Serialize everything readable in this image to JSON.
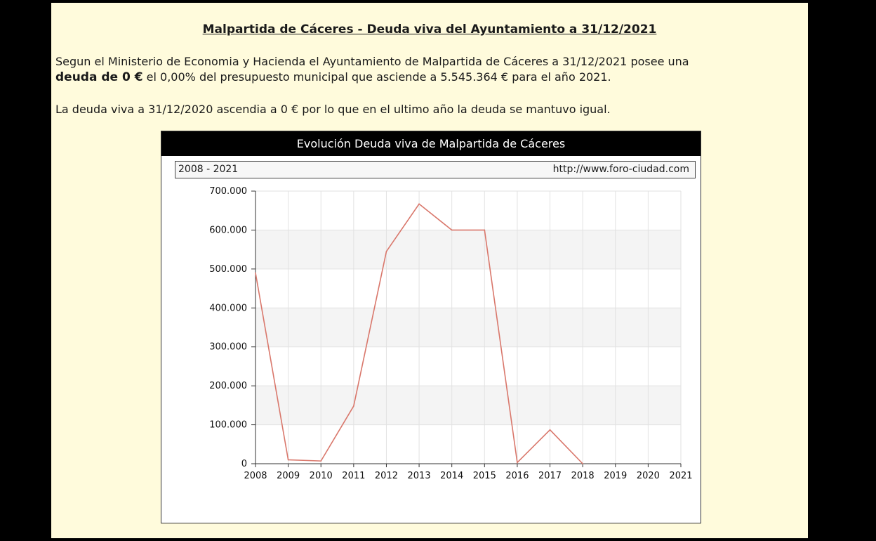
{
  "page": {
    "title": "Malpartida de Cáceres - Deuda viva del Ayuntamiento a 31/12/2021",
    "paragraph1_part1": "Segun el Ministerio de Economia y Hacienda el Ayuntamiento de Malpartida de Cáceres a 31/12/2021 posee una",
    "paragraph1_bold": "deuda de 0 €",
    "paragraph1_part2": " el 0,00% del presupuesto municipal que asciende a 5.545.364 € para el año 2021.",
    "paragraph2": "La deuda viva a 31/12/2020 ascendia a 0 € por lo que en el ultimo año la deuda se mantuvo igual."
  },
  "chart": {
    "header": "Evolución Deuda viva de Malpartida de Cáceres",
    "range_label": "2008 - 2021",
    "source_label": "http://www.foro-ciudad.com",
    "line_color": "#d9776b"
  },
  "chart_data": {
    "type": "line",
    "title": "Evolución Deuda viva de Malpartida de Cáceres",
    "subtitle": "2008 - 2021",
    "x": [
      "2008",
      "2009",
      "2010",
      "2011",
      "2012",
      "2013",
      "2014",
      "2015",
      "2016",
      "2017",
      "2018",
      "2019",
      "2020",
      "2021"
    ],
    "series": [
      {
        "values": [
          490000,
          10000,
          7000,
          148000,
          545000,
          667000,
          600000,
          600000,
          3000,
          87000,
          0,
          null,
          null,
          null
        ]
      }
    ],
    "y_ticks": [
      0,
      100000,
      200000,
      300000,
      400000,
      500000,
      600000,
      700000
    ],
    "y_tick_labels": [
      "0",
      "100.000",
      "200.000",
      "300.000",
      "400.000",
      "500.000",
      "600.000",
      "700.000"
    ],
    "ylim": [
      0,
      700000
    ],
    "grid": true,
    "xlabel": "",
    "ylabel": ""
  }
}
